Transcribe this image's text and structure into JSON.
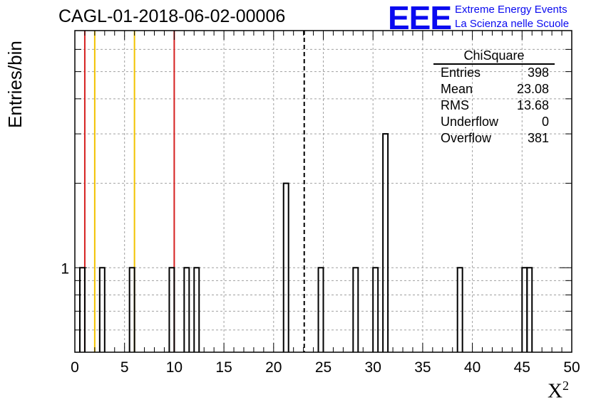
{
  "title": "CAGL-01-2018-06-02-00006",
  "logo": {
    "mark": "EEE",
    "line1": "Extreme Energy Events",
    "line2": "La Scienza nelle Scuole"
  },
  "colors": {
    "axis": "#000000",
    "grid": "#a0a0a0",
    "hist": "#000000",
    "red": "#d62020",
    "yellow": "#f2c300",
    "logo": "#0a0af0"
  },
  "stats": {
    "name": "ChiSquare",
    "rows": [
      {
        "label": "Entries",
        "value": "398"
      },
      {
        "label": "Mean",
        "value": "23.08"
      },
      {
        "label": "RMS",
        "value": "13.68"
      },
      {
        "label": "Underflow",
        "value": "0"
      },
      {
        "label": "Overflow",
        "value": "381"
      }
    ]
  },
  "chart_data": {
    "type": "bar",
    "title": "CAGL-01-2018-06-02-00006",
    "xlabel": "X²",
    "ylabel": "Entries/bin",
    "x_scale": "linear",
    "y_scale": "log",
    "xlim": [
      0,
      50
    ],
    "ylim": [
      0.5,
      7
    ],
    "x_ticks": [
      0,
      5,
      10,
      15,
      20,
      25,
      30,
      35,
      40,
      45,
      50
    ],
    "y_tick_labels": [
      {
        "value": 1,
        "label": "1"
      }
    ],
    "bin_width": 0.5,
    "bins": [
      {
        "x": 0.5,
        "count": 1
      },
      {
        "x": 2.5,
        "count": 1
      },
      {
        "x": 5.5,
        "count": 1
      },
      {
        "x": 9.5,
        "count": 1
      },
      {
        "x": 11.0,
        "count": 1
      },
      {
        "x": 12.0,
        "count": 1
      },
      {
        "x": 21.0,
        "count": 2
      },
      {
        "x": 24.5,
        "count": 1
      },
      {
        "x": 28.0,
        "count": 1
      },
      {
        "x": 30.0,
        "count": 1
      },
      {
        "x": 31.0,
        "count": 3
      },
      {
        "x": 38.5,
        "count": 1
      },
      {
        "x": 45.0,
        "count": 1
      },
      {
        "x": 45.5,
        "count": 1
      }
    ],
    "vertical_lines": [
      {
        "x": 1,
        "color": "red",
        "style": "solid"
      },
      {
        "x": 2,
        "color": "yellow",
        "style": "solid"
      },
      {
        "x": 6,
        "color": "yellow",
        "style": "solid"
      },
      {
        "x": 10,
        "color": "red",
        "style": "solid"
      },
      {
        "x": 23.08,
        "color": "black",
        "style": "dashed"
      }
    ],
    "grid": true,
    "legend": "top-right stats box"
  }
}
